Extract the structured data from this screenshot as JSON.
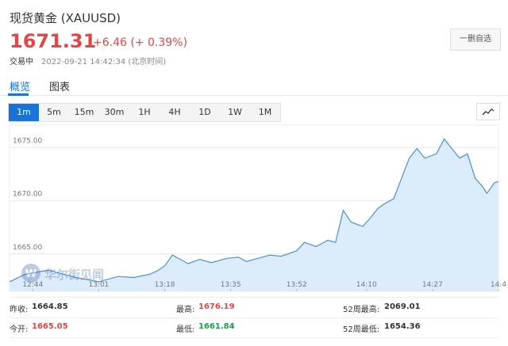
{
  "header": {
    "title": "现货黄金 (XAUUSD)",
    "price": "1671.31",
    "change": "+6.46 (+ 0.39%)",
    "status": "交易中",
    "time": "2022-09-21 14:42:34 (北京时间)",
    "button": "一删自选"
  },
  "tabs": [
    "概览",
    "图表"
  ],
  "periods": [
    "1m",
    "5m",
    "15m",
    "30m",
    "1H",
    "4H",
    "1D",
    "1W",
    "1M"
  ],
  "watermark": "华尔街见闻",
  "chart_data": {
    "type": "area",
    "color": "#4a90d9",
    "fill": "#ddecfb",
    "grid": true,
    "x": [
      38,
      42,
      48,
      54,
      58,
      61,
      66,
      70,
      74,
      76,
      78,
      80,
      81,
      84,
      87,
      90,
      94,
      97,
      99,
      102,
      105,
      108,
      112,
      114,
      117,
      120,
      122,
      124,
      126,
      129,
      131,
      133,
      135,
      137,
      139,
      141,
      143,
      145,
      148,
      150,
      152,
      154,
      156,
      158,
      160,
      161,
      163,
      164
    ],
    "values": [
      1662.4,
      1663.1,
      1663.5,
      1662.9,
      1662.6,
      1662.4,
      1662.9,
      1662.8,
      1663.1,
      1663.4,
      1663.9,
      1664.9,
      1664.7,
      1664.1,
      1664.5,
      1664.2,
      1664.6,
      1664.7,
      1664.3,
      1664.6,
      1664.9,
      1664.8,
      1665.3,
      1666.1,
      1665.7,
      1666.3,
      1666.1,
      1669.1,
      1668.0,
      1667.6,
      1668.4,
      1669.3,
      1669.8,
      1670.2,
      1672.1,
      1674.0,
      1674.9,
      1674.0,
      1674.4,
      1675.8,
      1674.9,
      1674.0,
      1674.4,
      1672.1,
      1671.3,
      1670.7,
      1671.7,
      1671.8
    ],
    "xlim": [
      38,
      164
    ],
    "ylim": [
      1661.5,
      1677.1
    ],
    "yticks": [
      {
        "value": 1665,
        "label": "1665.00"
      },
      {
        "value": 1670,
        "label": "1670.00"
      },
      {
        "value": 1675,
        "label": "1675.00"
      }
    ],
    "xticks": [
      {
        "value": 44,
        "label": "12:44"
      },
      {
        "value": 61,
        "label": "13:01"
      },
      {
        "value": 78,
        "label": "13:18"
      },
      {
        "value": 95,
        "label": "13:35"
      },
      {
        "value": 112,
        "label": "13:52"
      },
      {
        "value": 130,
        "label": "14:10"
      },
      {
        "value": 147,
        "label": "14:27"
      },
      {
        "value": 164,
        "label": "14:4"
      }
    ]
  },
  "stats": [
    {
      "label": "昨收:",
      "value": "1664.85"
    },
    {
      "label": "最高:",
      "value": "1676.19"
    },
    {
      "label": "52周最高:",
      "value": "2069.01"
    },
    {
      "label": "今开:",
      "value": "1665.05"
    },
    {
      "label": "最低:",
      "value": "1661.84"
    },
    {
      "label": "52周最低:",
      "value": "1654.36"
    }
  ]
}
